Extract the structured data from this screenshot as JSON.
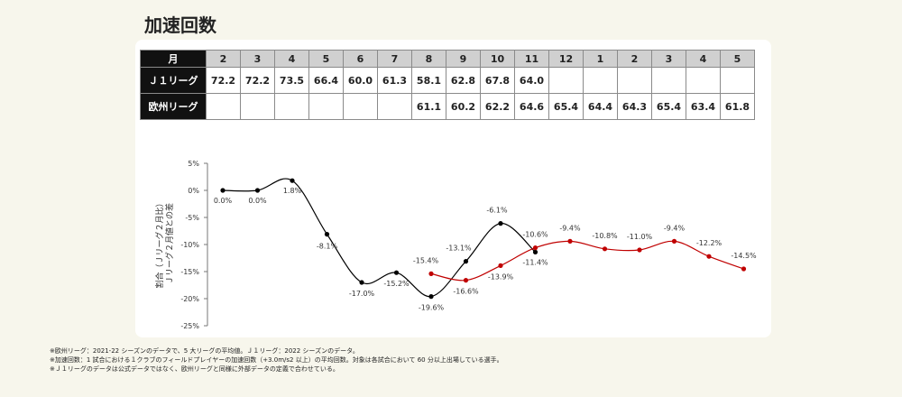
{
  "title": "加速回数",
  "table": {
    "header_label": "月",
    "months": [
      "2",
      "3",
      "4",
      "5",
      "6",
      "7",
      "8",
      "9",
      "10",
      "11",
      "12",
      "1",
      "2",
      "3",
      "4",
      "5"
    ],
    "rows": [
      {
        "label": "Ｊ１リーグ",
        "values": [
          "72.2",
          "72.2",
          "73.5",
          "66.4",
          "60.0",
          "61.3",
          "58.1",
          "62.8",
          "67.8",
          "64.0",
          "",
          "",
          "",
          "",
          "",
          ""
        ]
      },
      {
        "label": "欧州リーグ",
        "values": [
          "",
          "",
          "",
          "",
          "",
          "",
          "61.1",
          "60.2",
          "62.2",
          "64.6",
          "65.4",
          "64.4",
          "64.3",
          "65.4",
          "63.4",
          "61.8"
        ]
      }
    ]
  },
  "chart_data": {
    "type": "line",
    "ylabel": "割合（Ｊリーグ２月比）\nＪリーグ２月値との差",
    "y_ticks": [
      "5%",
      "0%",
      "-5%",
      "-10%",
      "-15%",
      "-20%",
      "-25%"
    ],
    "ylim": [
      -25,
      5
    ],
    "series": [
      {
        "color": "#000000",
        "values": [
          0.0,
          0.0,
          1.8,
          -8.1,
          -17.0,
          -15.2,
          -19.6,
          -13.1,
          -6.1,
          -11.4
        ],
        "labels": [
          "0.0%",
          "0.0%",
          "1.8%",
          "-8.1%",
          "-17.0%",
          "-15.2%",
          "-19.6%",
          "-13.1%",
          "-6.1%",
          "-11.4%"
        ]
      },
      {
        "color": "#c00000",
        "start_index": 6,
        "values": [
          -15.4,
          -16.6,
          -13.9,
          -10.6,
          -9.4,
          -10.8,
          -11.0,
          -9.4,
          -12.2,
          -14.5
        ],
        "labels": [
          "-15.4%",
          "-16.6%",
          "-13.9%",
          "-10.6%",
          "-9.4%",
          "-10.8%",
          "-11.0%",
          "-9.4%",
          "-12.2%",
          "-14.5%"
        ]
      }
    ]
  },
  "notes": [
    "※欧州リーグ：2021-22 シーズンのデータで、5 大リーグの平均値。Ｊ１リーグ：2022 シーズンのデータ。",
    "※加速回数：1 試合における１クラブのフィールドプレイヤーの加速回数（+3.0m/s2 以上）の平均回数。対象は各試合において 60 分以上出場している選手。",
    "※Ｊ１リーグのデータは公式データではなく、欧州リーグと同様に外部データの定義で合わせている。"
  ]
}
